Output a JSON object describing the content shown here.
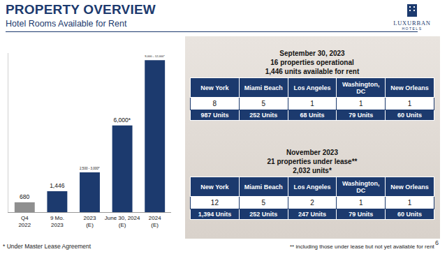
{
  "header": {
    "title": "PROPERTY OVERVIEW",
    "subtitle": "Hotel Rooms Available for Rent",
    "logo": {
      "name": "LUXURBAN",
      "tagline": "HOTELS"
    }
  },
  "chart_data": {
    "type": "bar",
    "categories": [
      "Q4\n2022",
      "9 Mo.\n2023",
      "2023\n(E)",
      "June 30, 2024\n(E)",
      "2024\n(E)"
    ],
    "values": [
      680,
      1446,
      2750,
      6000,
      10500
    ],
    "value_labels": [
      "680",
      "1,446",
      "2,500 - 3,000*",
      "6,000*",
      "9,000 – 12,000*"
    ],
    "colors": [
      "#8f8f8f",
      "#1c3a6e",
      "#1c3a6e",
      "#1c3a6e",
      "#1c3a6e"
    ],
    "ylim": [
      0,
      11000
    ],
    "yticks": [
      0
    ],
    "grid": false,
    "data_labels": true,
    "tick_labels": "x"
  },
  "chart_footnote": "* Under Master Lease Agreement",
  "tables": [
    {
      "heading": [
        "September 30, 2023",
        "16 properties operational",
        "1,446 units available for rent"
      ],
      "columns": [
        "New York",
        "Miami Beach",
        "Los Angeles",
        "Washington, DC",
        "New Orleans"
      ],
      "properties": [
        8,
        5,
        1,
        1,
        1
      ],
      "units": [
        "987 Units",
        "252 Units",
        "68 Units",
        "79 Units",
        "60 Units"
      ]
    },
    {
      "heading": [
        "November 2023",
        "21 properties under lease**",
        "2,032 units*"
      ],
      "columns": [
        "New York",
        "Miami Beach",
        "Los Angeles",
        "Washington, DC",
        "New Orleans"
      ],
      "properties": [
        12,
        5,
        2,
        1,
        1
      ],
      "units": [
        "1,394 Units",
        "252 Units",
        "247 Units",
        "79 Units",
        "60 Units"
      ]
    }
  ],
  "tables_footnote": "** including those under lease but not yet available for rent",
  "page_number": 6
}
